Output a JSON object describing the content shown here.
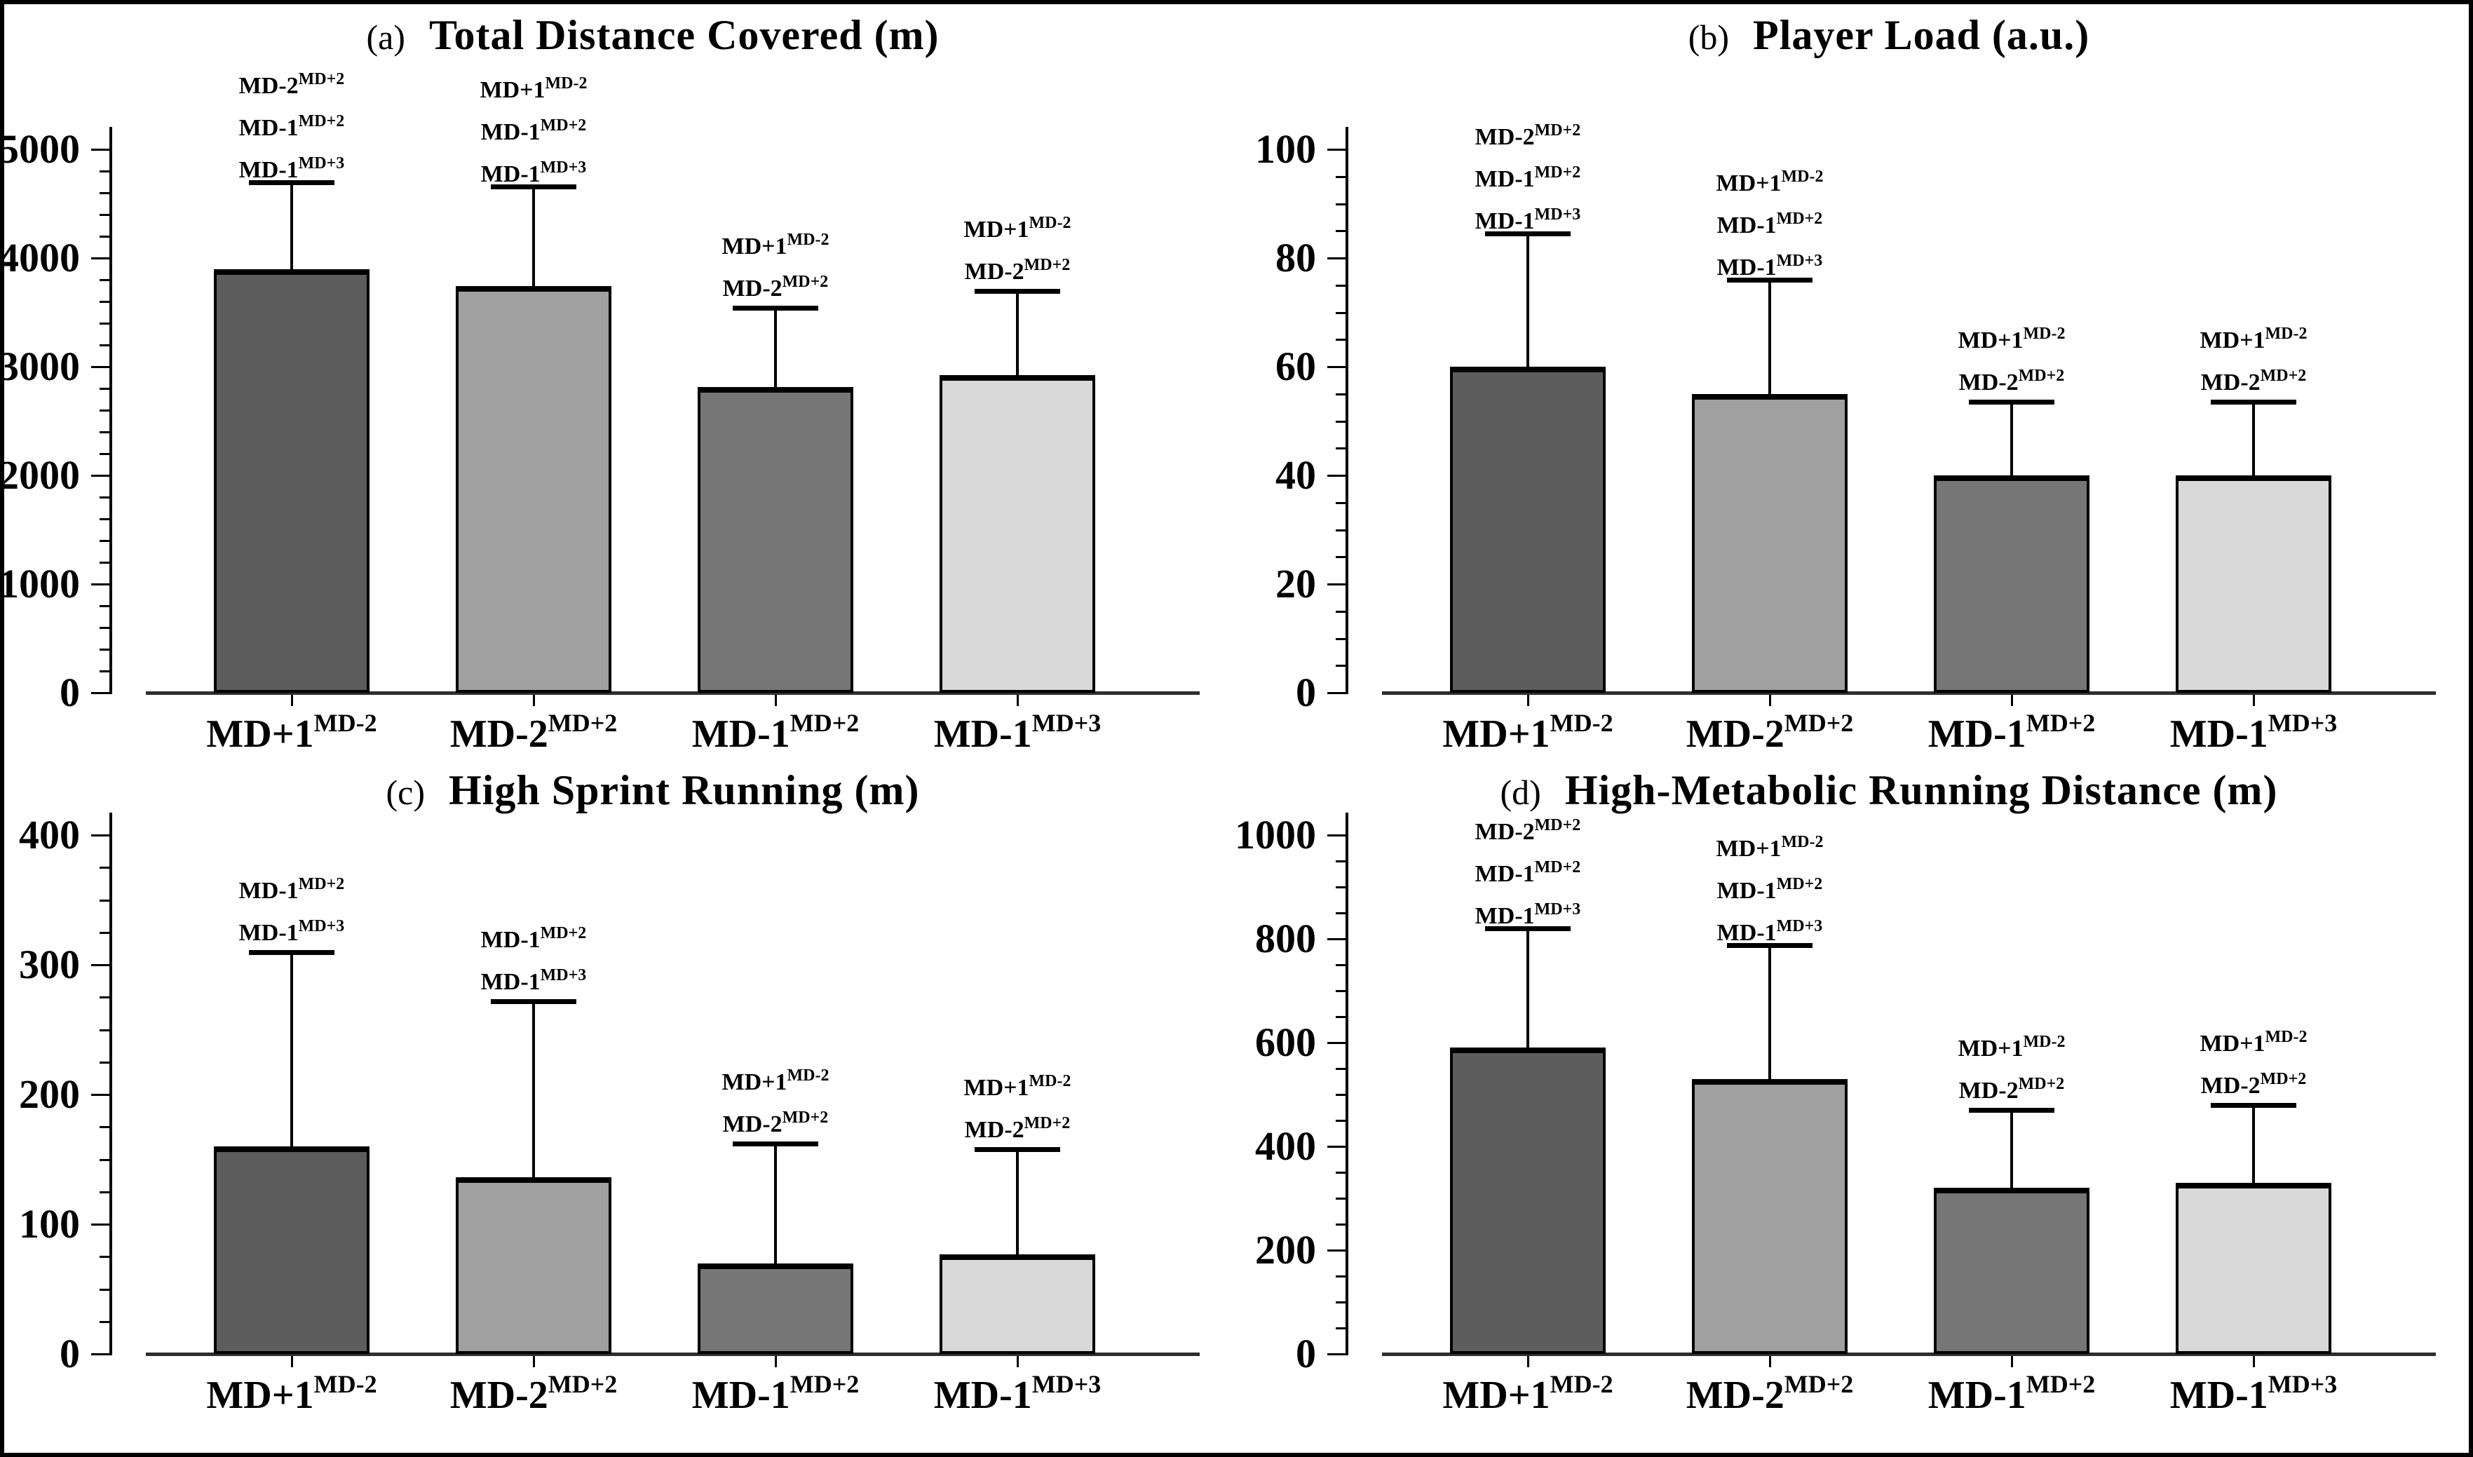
{
  "figure": {
    "background": "#ffffff",
    "frame_color": "#000000",
    "bar_palette": [
      "#5d5d5d",
      "#a0a0a0",
      "#767676",
      "#d9d9d9"
    ],
    "axis_color": "#000000",
    "baseline_color": "#2e2e2e"
  },
  "chart_data": [
    {
      "type": "bar",
      "panel_letter": "(a)",
      "title": "Total Distance Covered (m)",
      "ylim": [
        0,
        5000
      ],
      "ytick_step": 1000,
      "minor_ticks_per_interval": 4,
      "grid": false,
      "legend": "none",
      "categories": [
        {
          "base": "MD+1",
          "sup": "MD-2"
        },
        {
          "base": "MD-2",
          "sup": "MD+2"
        },
        {
          "base": "MD-1",
          "sup": "MD+2"
        },
        {
          "base": "MD-1",
          "sup": "MD+3"
        }
      ],
      "bars": [
        {
          "value": 3900,
          "error_top": 4700,
          "color": "#5d5d5d",
          "annotations": [
            {
              "base": "MD-2",
              "sup": "MD+2"
            },
            {
              "base": "MD-1",
              "sup": "MD+2"
            },
            {
              "base": "MD-1",
              "sup": "MD+3"
            }
          ]
        },
        {
          "value": 3740,
          "error_top": 4660,
          "color": "#a0a0a0",
          "annotations": [
            {
              "base": "MD+1",
              "sup": "MD-2"
            },
            {
              "base": "MD-1",
              "sup": "MD+2"
            },
            {
              "base": "MD-1",
              "sup": "MD+3"
            }
          ]
        },
        {
          "value": 2810,
          "error_top": 3540,
          "color": "#767676",
          "annotations": [
            {
              "base": "MD+1",
              "sup": "MD-2"
            },
            {
              "base": "MD-2",
              "sup": "MD+2"
            }
          ]
        },
        {
          "value": 2920,
          "error_top": 3700,
          "color": "#d9d9d9",
          "annotations": [
            {
              "base": "MD+1",
              "sup": "MD-2"
            },
            {
              "base": "MD-2",
              "sup": "MD+2"
            }
          ]
        }
      ]
    },
    {
      "type": "bar",
      "panel_letter": "(b)",
      "title": "Player Load (a.u.)",
      "ylim": [
        0,
        100
      ],
      "ytick_step": 20,
      "minor_ticks_per_interval": 3,
      "grid": false,
      "legend": "none",
      "categories": [
        {
          "base": "MD+1",
          "sup": "MD-2"
        },
        {
          "base": "MD-2",
          "sup": "MD+2"
        },
        {
          "base": "MD-1",
          "sup": "MD+2"
        },
        {
          "base": "MD-1",
          "sup": "MD+3"
        }
      ],
      "bars": [
        {
          "value": 60,
          "error_top": 84.5,
          "color": "#5d5d5d",
          "annotations": [
            {
              "base": "MD-2",
              "sup": "MD+2"
            },
            {
              "base": "MD-1",
              "sup": "MD+2"
            },
            {
              "base": "MD-1",
              "sup": "MD+3"
            }
          ]
        },
        {
          "value": 55,
          "error_top": 76,
          "color": "#a0a0a0",
          "annotations": [
            {
              "base": "MD+1",
              "sup": "MD-2"
            },
            {
              "base": "MD-1",
              "sup": "MD+2"
            },
            {
              "base": "MD-1",
              "sup": "MD+3"
            }
          ]
        },
        {
          "value": 40,
          "error_top": 53.5,
          "color": "#767676",
          "annotations": [
            {
              "base": "MD+1",
              "sup": "MD-2"
            },
            {
              "base": "MD-2",
              "sup": "MD+2"
            }
          ]
        },
        {
          "value": 40,
          "error_top": 53.5,
          "color": "#d9d9d9",
          "annotations": [
            {
              "base": "MD+1",
              "sup": "MD-2"
            },
            {
              "base": "MD-2",
              "sup": "MD+2"
            }
          ]
        }
      ]
    },
    {
      "type": "bar",
      "panel_letter": "(c)",
      "title": "High Sprint Running (m)",
      "ylim": [
        0,
        400
      ],
      "ytick_step": 100,
      "minor_ticks_per_interval": 3,
      "grid": false,
      "legend": "none",
      "categories": [
        {
          "base": "MD+1",
          "sup": "MD-2"
        },
        {
          "base": "MD-2",
          "sup": "MD+2"
        },
        {
          "base": "MD-1",
          "sup": "MD+2"
        },
        {
          "base": "MD-1",
          "sup": "MD+3"
        }
      ],
      "bars": [
        {
          "value": 160,
          "error_top": 310,
          "color": "#5d5d5d",
          "annotations": [
            {
              "base": "MD-1",
              "sup": "MD+2"
            },
            {
              "base": "MD-1",
              "sup": "MD+3"
            }
          ]
        },
        {
          "value": 136,
          "error_top": 272,
          "color": "#a0a0a0",
          "annotations": [
            {
              "base": "MD-1",
              "sup": "MD+2"
            },
            {
              "base": "MD-1",
              "sup": "MD+3"
            }
          ]
        },
        {
          "value": 70,
          "error_top": 162,
          "color": "#767676",
          "annotations": [
            {
              "base": "MD+1",
              "sup": "MD-2"
            },
            {
              "base": "MD-2",
              "sup": "MD+2"
            }
          ]
        },
        {
          "value": 77,
          "error_top": 158,
          "color": "#d9d9d9",
          "annotations": [
            {
              "base": "MD+1",
              "sup": "MD-2"
            },
            {
              "base": "MD-2",
              "sup": "MD+2"
            }
          ]
        }
      ]
    },
    {
      "type": "bar",
      "panel_letter": "(d)",
      "title": "High-Metabolic Running Distance (m)",
      "ylim": [
        0,
        1000
      ],
      "ytick_step": 200,
      "minor_ticks_per_interval": 3,
      "grid": false,
      "legend": "none",
      "categories": [
        {
          "base": "MD+1",
          "sup": "MD-2"
        },
        {
          "base": "MD-2",
          "sup": "MD+2"
        },
        {
          "base": "MD-1",
          "sup": "MD+2"
        },
        {
          "base": "MD-1",
          "sup": "MD+3"
        }
      ],
      "bars": [
        {
          "value": 590,
          "error_top": 820,
          "color": "#5d5d5d",
          "annotations": [
            {
              "base": "MD-2",
              "sup": "MD+2"
            },
            {
              "base": "MD-1",
              "sup": "MD+2"
            },
            {
              "base": "MD-1",
              "sup": "MD+3"
            }
          ]
        },
        {
          "value": 530,
          "error_top": 788,
          "color": "#a0a0a0",
          "annotations": [
            {
              "base": "MD+1",
              "sup": "MD-2"
            },
            {
              "base": "MD-1",
              "sup": "MD+2"
            },
            {
              "base": "MD-1",
              "sup": "MD+3"
            }
          ]
        },
        {
          "value": 320,
          "error_top": 470,
          "color": "#767676",
          "annotations": [
            {
              "base": "MD+1",
              "sup": "MD-2"
            },
            {
              "base": "MD-2",
              "sup": "MD+2"
            }
          ]
        },
        {
          "value": 330,
          "error_top": 480,
          "color": "#d9d9d9",
          "annotations": [
            {
              "base": "MD+1",
              "sup": "MD-2"
            },
            {
              "base": "MD-2",
              "sup": "MD+2"
            }
          ]
        }
      ]
    }
  ]
}
